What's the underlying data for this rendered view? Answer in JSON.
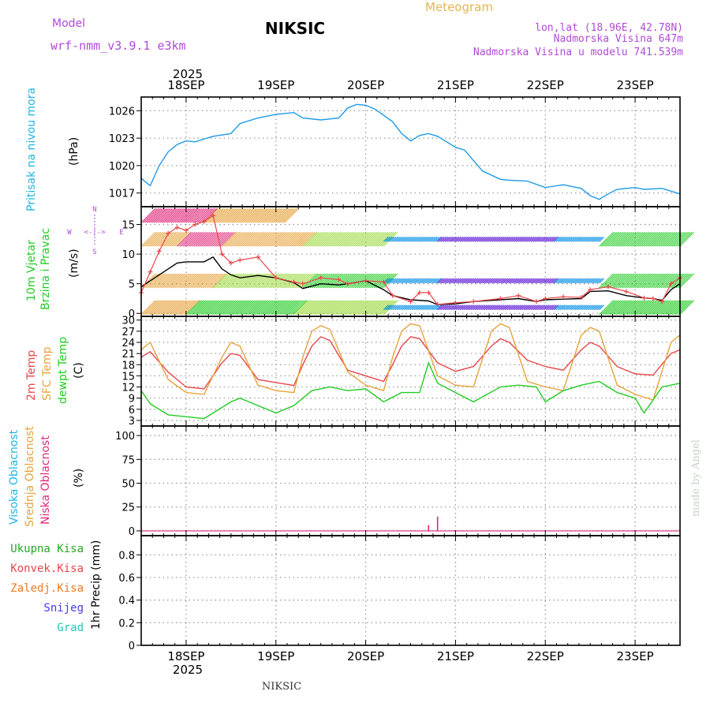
{
  "header": {
    "model_label": "Model",
    "model_name": "wrf-nmm_v3.9.1 e3km",
    "title": "NIKSIC",
    "subtitle": "Meteogram",
    "lonlat": "lon,lat (18.96E, 42.78N)",
    "elevation": "Nadmorska Visina 647m",
    "model_elevation": "Nadmorska Visina u modelu 741.539m",
    "footer_station": "NIKSIC",
    "credit": "made by Angel",
    "year": "2025"
  },
  "colors": {
    "pressure": "#1e9be6",
    "temp2m": "#e8474a",
    "sfc": "#e6a33c",
    "dewpt": "#22cc22",
    "cloud_high": "#1eb4e6",
    "cloud_mid": "#e6a33c",
    "cloud_low": "#e0287a",
    "title_model": "#b04ad8",
    "meteogram": "#e6b450"
  },
  "chart_data": [
    {
      "type": "line",
      "name": "pressure",
      "ylabel": "Pritisak na nivou mora",
      "unit": "(hPa)",
      "x_unit": "day of September (UTC)",
      "day_ticks": [
        "18SEP",
        "19SEP",
        "20SEP",
        "21SEP",
        "22SEP",
        "23SEP"
      ],
      "ylim": [
        1015.5,
        1027.5
      ],
      "yticks": [
        1017,
        1020,
        1023,
        1026
      ],
      "x": [
        17.5,
        17.6,
        17.7,
        17.8,
        17.9,
        18.0,
        18.1,
        18.3,
        18.5,
        18.6,
        18.8,
        19.0,
        19.1,
        19.2,
        19.3,
        19.5,
        19.7,
        19.8,
        19.9,
        20.0,
        20.1,
        20.3,
        20.4,
        20.5,
        20.6,
        20.7,
        20.8,
        21.0,
        21.1,
        21.3,
        21.5,
        21.6,
        21.8,
        22.0,
        22.2,
        22.4,
        22.5,
        22.6,
        22.7,
        22.8,
        23.0,
        23.1,
        23.3,
        23.5
      ],
      "values": [
        1018.6,
        1017.8,
        1020.0,
        1021.5,
        1022.3,
        1022.7,
        1022.6,
        1023.2,
        1023.5,
        1024.6,
        1025.2,
        1025.6,
        1025.7,
        1025.8,
        1025.2,
        1025.0,
        1025.2,
        1026.3,
        1026.7,
        1026.6,
        1026.2,
        1024.8,
        1023.5,
        1022.7,
        1023.3,
        1023.5,
        1023.2,
        1022.0,
        1021.7,
        1019.4,
        1018.5,
        1018.4,
        1018.3,
        1017.6,
        1017.9,
        1017.5,
        1016.7,
        1016.3,
        1016.9,
        1017.4,
        1017.6,
        1017.4,
        1017.5,
        1016.9
      ]
    },
    {
      "type": "line",
      "name": "wind_speed",
      "ylabel": "10m Vjetar Brzina i Pravac",
      "unit": "(m/s)",
      "ylim": [
        -0.5,
        18
      ],
      "yticks": [
        0,
        5,
        10,
        15
      ],
      "compass": {
        "north": "N",
        "south": "S",
        "east": "E",
        "west": "W"
      },
      "series": [
        {
          "name": "mean wind",
          "color": "#000000",
          "x": [
            17.5,
            17.6,
            17.7,
            17.8,
            17.9,
            18.0,
            18.2,
            18.3,
            18.4,
            18.5,
            18.6,
            18.8,
            19.0,
            19.2,
            19.3,
            19.5,
            19.7,
            19.8,
            20.0,
            20.2,
            20.3,
            20.5,
            20.7,
            20.8,
            21.0,
            21.2,
            21.5,
            21.7,
            21.9,
            22.0,
            22.2,
            22.4,
            22.5,
            22.7,
            22.9,
            23.1,
            23.2,
            23.3,
            23.4,
            23.5
          ],
          "values": [
            4.5,
            5.5,
            6.5,
            7.5,
            8.5,
            8.7,
            8.7,
            9.5,
            7.5,
            6.5,
            6.0,
            6.4,
            6.0,
            5.2,
            4.2,
            5.0,
            4.8,
            5.0,
            5.5,
            4.0,
            3.0,
            2.3,
            2.1,
            1.5,
            1.6,
            2.0,
            2.3,
            2.5,
            2.0,
            2.3,
            2.4,
            2.5,
            3.7,
            3.8,
            3.0,
            2.6,
            2.5,
            2.2,
            4.0,
            5.0
          ]
        },
        {
          "name": "gusts",
          "color": "#e8474a",
          "x": [
            17.5,
            17.6,
            17.7,
            17.8,
            17.9,
            18.0,
            18.1,
            18.2,
            18.3,
            18.4,
            18.5,
            18.6,
            18.8,
            19.0,
            19.2,
            19.3,
            19.5,
            19.7,
            19.8,
            20.0,
            20.2,
            20.3,
            20.5,
            20.6,
            20.7,
            20.8,
            21.0,
            21.2,
            21.5,
            21.7,
            21.9,
            22.0,
            22.2,
            22.4,
            22.5,
            22.7,
            22.9,
            23.1,
            23.2,
            23.3,
            23.4,
            23.5
          ],
          "values": [
            3.5,
            7.0,
            10.5,
            13.5,
            14.5,
            14.0,
            15.0,
            15.5,
            16.5,
            10.0,
            8.5,
            9.0,
            9.5,
            6.0,
            5.3,
            5.0,
            6.0,
            5.7,
            5.0,
            5.5,
            5.3,
            3.0,
            2.0,
            3.5,
            3.5,
            1.5,
            1.8,
            2.0,
            2.5,
            3.0,
            2.0,
            2.5,
            2.8,
            2.7,
            4.0,
            4.5,
            3.7,
            2.6,
            2.5,
            2.0,
            5.0,
            6.0
          ]
        }
      ],
      "barb_rows": [
        {
          "level": 1,
          "segments": [
            {
              "x0": 17.5,
              "x1": 18.0,
              "color": "#e6a33c"
            },
            {
              "x0": 18.0,
              "x1": 19.2,
              "color": "#22cc22"
            },
            {
              "x0": 19.2,
              "x1": 20.2,
              "color": "#9bd83c"
            },
            {
              "x0": 20.2,
              "x1": 20.8,
              "color": "#1e9be6"
            },
            {
              "x0": 20.8,
              "x1": 22.1,
              "color": "#6a2cd8"
            },
            {
              "x0": 22.1,
              "x1": 22.6,
              "color": "#1e9be6"
            },
            {
              "x0": 22.6,
              "x1": 23.5,
              "color": "#22cc22"
            }
          ]
        },
        {
          "level": 5.5,
          "segments": [
            {
              "x0": 17.5,
              "x1": 18.3,
              "color": "#e6a33c"
            },
            {
              "x0": 18.3,
              "x1": 19.3,
              "color": "#9bd83c"
            },
            {
              "x0": 19.3,
              "x1": 20.2,
              "color": "#22cc22"
            },
            {
              "x0": 20.2,
              "x1": 20.8,
              "color": "#1e9be6"
            },
            {
              "x0": 20.8,
              "x1": 22.1,
              "color": "#6a2cd8"
            },
            {
              "x0": 22.1,
              "x1": 22.6,
              "color": "#1e9be6"
            },
            {
              "x0": 22.6,
              "x1": 23.5,
              "color": "#22cc22"
            }
          ]
        },
        {
          "level": 12.5,
          "segments": [
            {
              "x0": 17.5,
              "x1": 17.9,
              "color": "#e6a33c"
            },
            {
              "x0": 17.9,
              "x1": 18.4,
              "color": "#e0287a"
            },
            {
              "x0": 18.4,
              "x1": 19.3,
              "color": "#e6a33c"
            },
            {
              "x0": 19.3,
              "x1": 20.2,
              "color": "#9bd83c"
            },
            {
              "x0": 20.2,
              "x1": 20.8,
              "color": "#1e9be6"
            },
            {
              "x0": 20.8,
              "x1": 22.1,
              "color": "#6a2cd8"
            },
            {
              "x0": 22.1,
              "x1": 22.6,
              "color": "#1e9be6"
            },
            {
              "x0": 22.6,
              "x1": 23.5,
              "color": "#22cc22"
            }
          ]
        },
        {
          "level": 16.5,
          "segments": [
            {
              "x0": 17.5,
              "x1": 18.2,
              "color": "#e0287a"
            },
            {
              "x0": 18.2,
              "x1": 19.1,
              "color": "#e6a33c"
            }
          ]
        }
      ]
    },
    {
      "type": "line",
      "name": "temperature",
      "ylabels": [
        "2m Temp",
        "SFC Temp",
        "dewpt Temp"
      ],
      "unit": "(C)",
      "ylim": [
        1.5,
        31
      ],
      "yticks": [
        3,
        6,
        9,
        12,
        15,
        18,
        21,
        24,
        27,
        30
      ],
      "series": [
        {
          "name": "2m Temp",
          "color": "#e8474a",
          "x": [
            17.5,
            17.6,
            17.8,
            18.0,
            18.2,
            18.4,
            18.5,
            18.6,
            18.8,
            19.0,
            19.2,
            19.3,
            19.4,
            19.5,
            19.6,
            19.8,
            20.0,
            20.2,
            20.3,
            20.4,
            20.5,
            20.6,
            20.8,
            21.0,
            21.2,
            21.4,
            21.5,
            21.6,
            21.8,
            22.0,
            22.2,
            22.4,
            22.5,
            22.6,
            22.8,
            23.0,
            23.2,
            23.4,
            23.5
          ],
          "values": [
            20,
            21.5,
            16,
            12,
            11.5,
            18.5,
            21,
            20.5,
            14,
            13.2,
            12.4,
            18,
            23,
            25.5,
            24.5,
            16.5,
            15,
            13.5,
            18,
            23,
            25.5,
            25,
            18.5,
            16.2,
            17.5,
            23,
            25,
            24,
            19.2,
            17.5,
            16.5,
            22,
            24,
            23,
            17.5,
            15.5,
            15.2,
            21,
            22
          ]
        },
        {
          "name": "SFC Temp",
          "color": "#e6a33c",
          "x": [
            17.5,
            17.6,
            17.8,
            18.0,
            18.2,
            18.4,
            18.5,
            18.6,
            18.8,
            19.0,
            19.2,
            19.3,
            19.4,
            19.5,
            19.6,
            19.8,
            20.0,
            20.2,
            20.3,
            20.4,
            20.5,
            20.6,
            20.8,
            21.0,
            21.2,
            21.4,
            21.5,
            21.6,
            21.8,
            22.0,
            22.2,
            22.4,
            22.5,
            22.6,
            22.8,
            23.0,
            23.2,
            23.4,
            23.5
          ],
          "values": [
            22,
            24,
            14,
            10.5,
            10,
            20,
            24,
            23,
            12.5,
            11,
            10.5,
            20,
            27,
            28.5,
            27.5,
            16,
            12.5,
            11,
            20,
            27,
            29,
            28.5,
            15,
            12.5,
            12,
            27,
            29,
            28,
            13.5,
            12,
            11,
            26,
            28,
            27,
            12.5,
            10,
            8.5,
            24,
            26
          ]
        },
        {
          "name": "dewpt Temp",
          "color": "#22cc22",
          "x": [
            17.5,
            17.6,
            17.8,
            18.0,
            18.2,
            18.3,
            18.5,
            18.6,
            18.8,
            19.0,
            19.2,
            19.4,
            19.6,
            19.8,
            20.0,
            20.2,
            20.4,
            20.6,
            20.7,
            20.8,
            21.0,
            21.2,
            21.5,
            21.7,
            21.9,
            22.0,
            22.2,
            22.4,
            22.6,
            22.8,
            23.0,
            23.1,
            23.3,
            23.5
          ],
          "values": [
            11,
            7.5,
            4.5,
            4,
            3.5,
            5,
            8,
            9,
            7,
            5,
            7,
            11,
            12,
            11,
            11.5,
            8,
            10.5,
            10.5,
            18.5,
            13,
            10.5,
            8,
            12,
            12.5,
            12,
            8,
            11,
            12.5,
            13.5,
            10.5,
            9,
            5,
            12,
            13
          ]
        }
      ]
    },
    {
      "type": "bar",
      "name": "clouds",
      "ylabels": [
        "Visoka Oblacnost",
        "Srednja Oblacnost",
        "Niska Oblacnost"
      ],
      "unit": "(%)",
      "ylim": [
        -5,
        110
      ],
      "yticks": [
        0,
        25,
        50,
        75,
        100
      ],
      "series": [
        {
          "name": "Niska Oblacnost",
          "x": [
            20.7,
            20.8
          ],
          "values": [
            6,
            15
          ]
        }
      ]
    },
    {
      "type": "bar",
      "name": "precipitation",
      "ylabel": "1hr Precip",
      "unit": "(mm)",
      "ylim": [
        0,
        0.97
      ],
      "yticks": [
        0,
        0.2,
        0.4,
        0.6,
        0.8
      ],
      "legend": [
        {
          "label": "Ukupna Kisa",
          "color": "#22aa22"
        },
        {
          "label": "Konvek.Kisa",
          "color": "#e8474a"
        },
        {
          "label": "Zaledj.Kisa",
          "color": "#f07820"
        },
        {
          "label": "Snijeg",
          "color": "#4a3ce6"
        },
        {
          "label": "Grad",
          "color": "#22c8b4"
        }
      ],
      "series": []
    }
  ]
}
